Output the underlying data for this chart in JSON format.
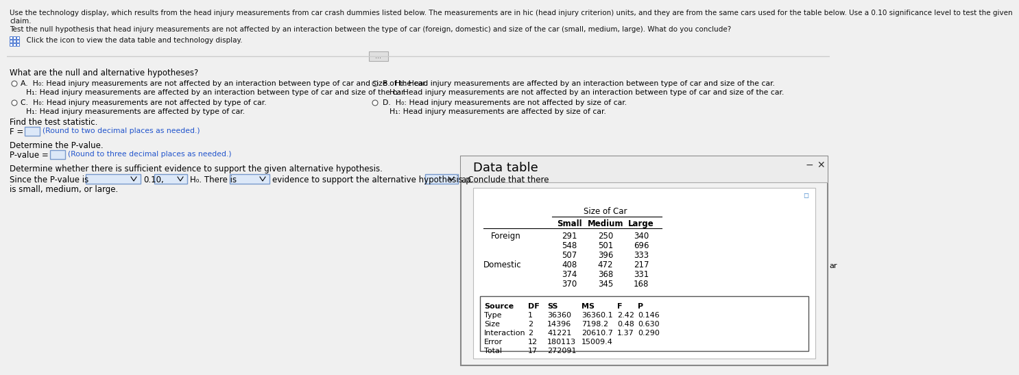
{
  "bg_color": "#f0f0f0",
  "text_color": "#000000",
  "blue_hint_color": "#2255cc",
  "input_border": "#7799cc",
  "input_fill": "#dce8f8",
  "popup_outer_bg": "#f0f0f0",
  "popup_inner_bg": "#ffffff",
  "line1": "Use the technology display, which results from the head injury measurements from car crash dummies listed below. The measurements are in hic (head injury criterion) units, and they are from the same cars used for the table below. Use a 0.10 significance level to test the given",
  "line2": "claim.",
  "line3": "Test the null hypothesis that head injury measurements are not affected by an interaction between the type of car (foreign, domestic) and size of the car (small, medium, large). What do you conclude?",
  "click_text": "  Click the icon to view the data table and technology display.",
  "section_hyp": "What are the null and alternative hypotheses?",
  "optA_label": "A.",
  "optA_h0": "H₀: Head injury measurements are not affected by an interaction between type of car and size of the car.",
  "optA_h1": "H₁: Head injury measurements are affected by an interaction between type of car and size of the car.",
  "optB_label": "B.",
  "optB_h0": "H₀: Head injury measurements are affected by an interaction between type of car and size of the car.",
  "optB_h1": "H₁: Head injury measurements are not affected by an interaction between type of car and size of the car.",
  "optC_label": "C.",
  "optC_h0": "H₀: Head injury measurements are not affected by type of car.",
  "optC_h1": "H₁: Head injury measurements are affected by type of car.",
  "optD_label": "D.",
  "optD_h0": "H₀: Head injury measurements are not affected by size of car.",
  "optD_h1": "H₁: Head injury measurements are affected by size of car.",
  "find_stat": "Find the test statistic.",
  "f_hint": "(Round to two decimal places as needed.)",
  "det_pval": "Determine the P-value.",
  "pval_hint": "(Round to three decimal places as needed.)",
  "det_suf": "Determine whether there is sufficient evidence to support the given alternative hypothesis.",
  "since_pre": "Since the P-value is",
  "since_010": "0.10,",
  "h0_there": "H₀. There is",
  "ev_text": "evidence to support the alternative hypothesis. Conclude that there",
  "ap_text": "ap",
  "last_line": "is small, medium, or large.",
  "popup_title": "Data table",
  "size_header": "Size of Car",
  "col_headers": [
    "Small",
    "Medium",
    "Large"
  ],
  "foreign_label": "Foreign",
  "domestic_label": "Domestic",
  "foreign_data": [
    [
      291,
      250,
      340
    ],
    [
      548,
      501,
      696
    ],
    [
      507,
      396,
      333
    ]
  ],
  "domestic_data": [
    [
      408,
      472,
      217
    ],
    [
      374,
      368,
      331
    ],
    [
      370,
      345,
      168
    ]
  ],
  "anova_headers": [
    "Source",
    "DF",
    "SS",
    "MS",
    "F",
    "P"
  ],
  "anova_rows": [
    [
      "Type",
      "1",
      "36360",
      "36360.1",
      "2.42",
      "0.146"
    ],
    [
      "Size",
      "2",
      "14396",
      "7198.2",
      "0.48",
      "0.630"
    ],
    [
      "Interaction",
      "2",
      "41221",
      "20610.7",
      "1.37",
      "0.290"
    ],
    [
      "Error",
      "12",
      "180113",
      "15009.4",
      "",
      ""
    ],
    [
      "Total",
      "17",
      "272091",
      "",
      "",
      ""
    ]
  ]
}
